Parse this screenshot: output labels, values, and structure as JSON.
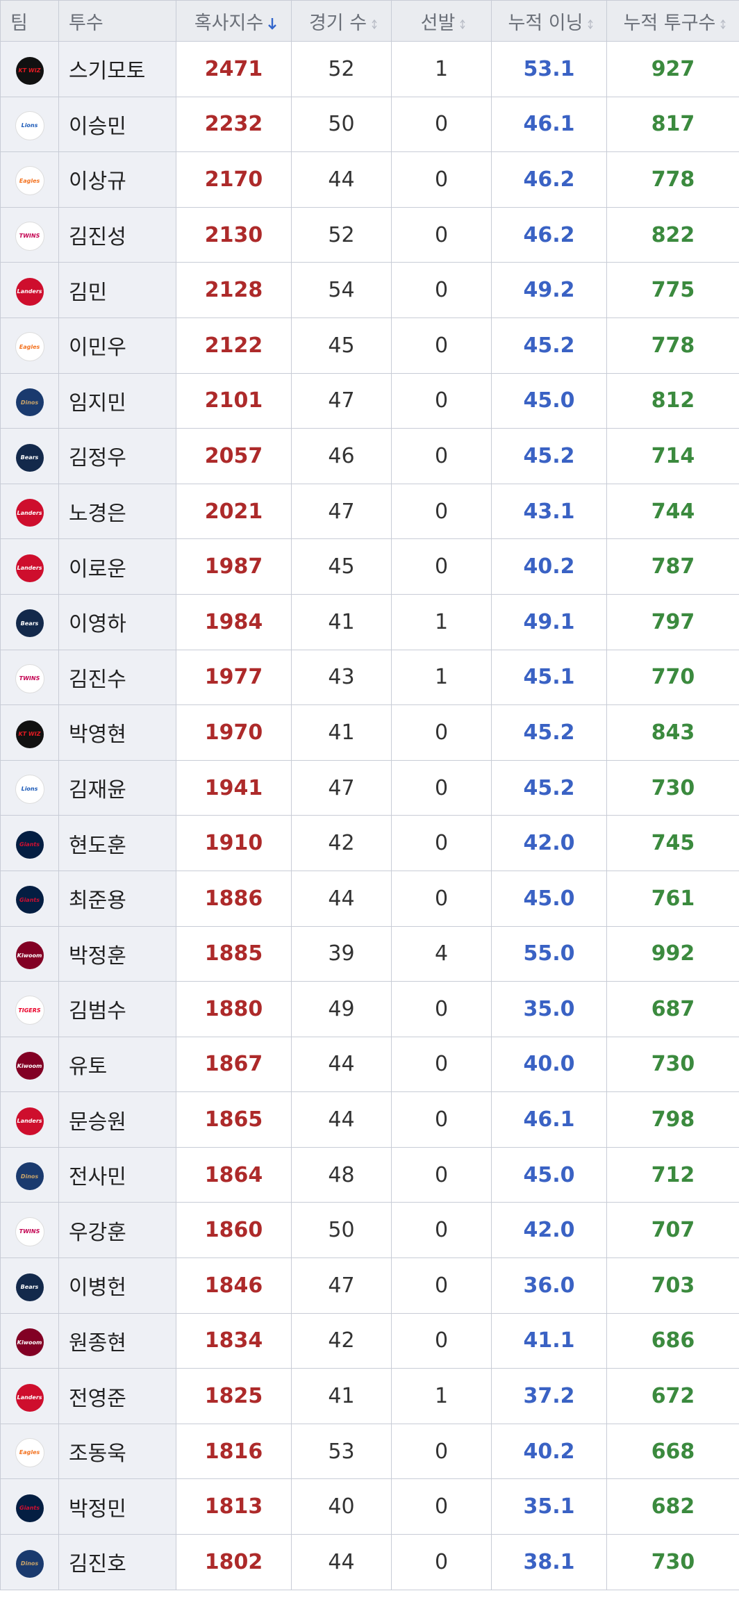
{
  "table": {
    "header": [
      "팀",
      "투수",
      "혹사지수",
      "경기 수",
      "선발",
      "누적 이닝",
      "누적 투구수"
    ],
    "rows": [
      [
        "KT WIZ",
        "스기모토",
        "2471",
        "52",
        "1",
        "53.1",
        "927"
      ],
      [
        "Lions",
        "이승민",
        "2232",
        "50",
        "0",
        "46.1",
        "817"
      ],
      [
        "Eagles",
        "이상규",
        "2170",
        "44",
        "0",
        "46.2",
        "778"
      ],
      [
        "TWINS",
        "김진성",
        "2130",
        "52",
        "0",
        "46.2",
        "822"
      ],
      [
        "Landers",
        "김민",
        "2128",
        "54",
        "0",
        "49.2",
        "775"
      ],
      [
        "Eagles",
        "이민우",
        "2122",
        "45",
        "0",
        "45.2",
        "778"
      ],
      [
        "Dinos",
        "임지민",
        "2101",
        "47",
        "0",
        "45.0",
        "812"
      ],
      [
        "Bears",
        "김정우",
        "2057",
        "46",
        "0",
        "45.2",
        "714"
      ],
      [
        "Landers",
        "노경은",
        "2021",
        "47",
        "0",
        "43.1",
        "744"
      ],
      [
        "Landers",
        "이로운",
        "1987",
        "45",
        "0",
        "40.2",
        "787"
      ],
      [
        "Bears",
        "이영하",
        "1984",
        "41",
        "1",
        "49.1",
        "797"
      ],
      [
        "TWINS",
        "김진수",
        "1977",
        "43",
        "1",
        "45.1",
        "770"
      ],
      [
        "KT WIZ",
        "박영현",
        "1970",
        "41",
        "0",
        "45.2",
        "843"
      ],
      [
        "Lions",
        "김재윤",
        "1941",
        "47",
        "0",
        "45.2",
        "730"
      ],
      [
        "Giants",
        "현도훈",
        "1910",
        "42",
        "0",
        "42.0",
        "745"
      ],
      [
        "Giants",
        "최준용",
        "1886",
        "44",
        "0",
        "45.0",
        "761"
      ],
      [
        "Kiwoom",
        "박정훈",
        "1885",
        "39",
        "4",
        "55.0",
        "992"
      ],
      [
        "TIGERS",
        "김범수",
        "1880",
        "49",
        "0",
        "35.0",
        "687"
      ],
      [
        "Kiwoom",
        "유토",
        "1867",
        "44",
        "0",
        "40.0",
        "730"
      ],
      [
        "Landers",
        "문승원",
        "1865",
        "44",
        "0",
        "46.1",
        "798"
      ],
      [
        "Dinos",
        "전사민",
        "1864",
        "48",
        "0",
        "45.0",
        "712"
      ],
      [
        "TWINS",
        "우강훈",
        "1860",
        "50",
        "0",
        "42.0",
        "707"
      ],
      [
        "Bears",
        "이병헌",
        "1846",
        "47",
        "0",
        "36.0",
        "703"
      ],
      [
        "Kiwoom",
        "원종현",
        "1834",
        "42",
        "0",
        "41.1",
        "686"
      ],
      [
        "Landers",
        "전영준",
        "1825",
        "41",
        "1",
        "37.2",
        "672"
      ],
      [
        "Eagles",
        "조동욱",
        "1816",
        "53",
        "0",
        "40.2",
        "668"
      ],
      [
        "Giants",
        "박정민",
        "1813",
        "40",
        "0",
        "35.1",
        "682"
      ],
      [
        "Dinos",
        "김진호",
        "1802",
        "44",
        "0",
        "38.1",
        "730"
      ]
    ]
  }
}
